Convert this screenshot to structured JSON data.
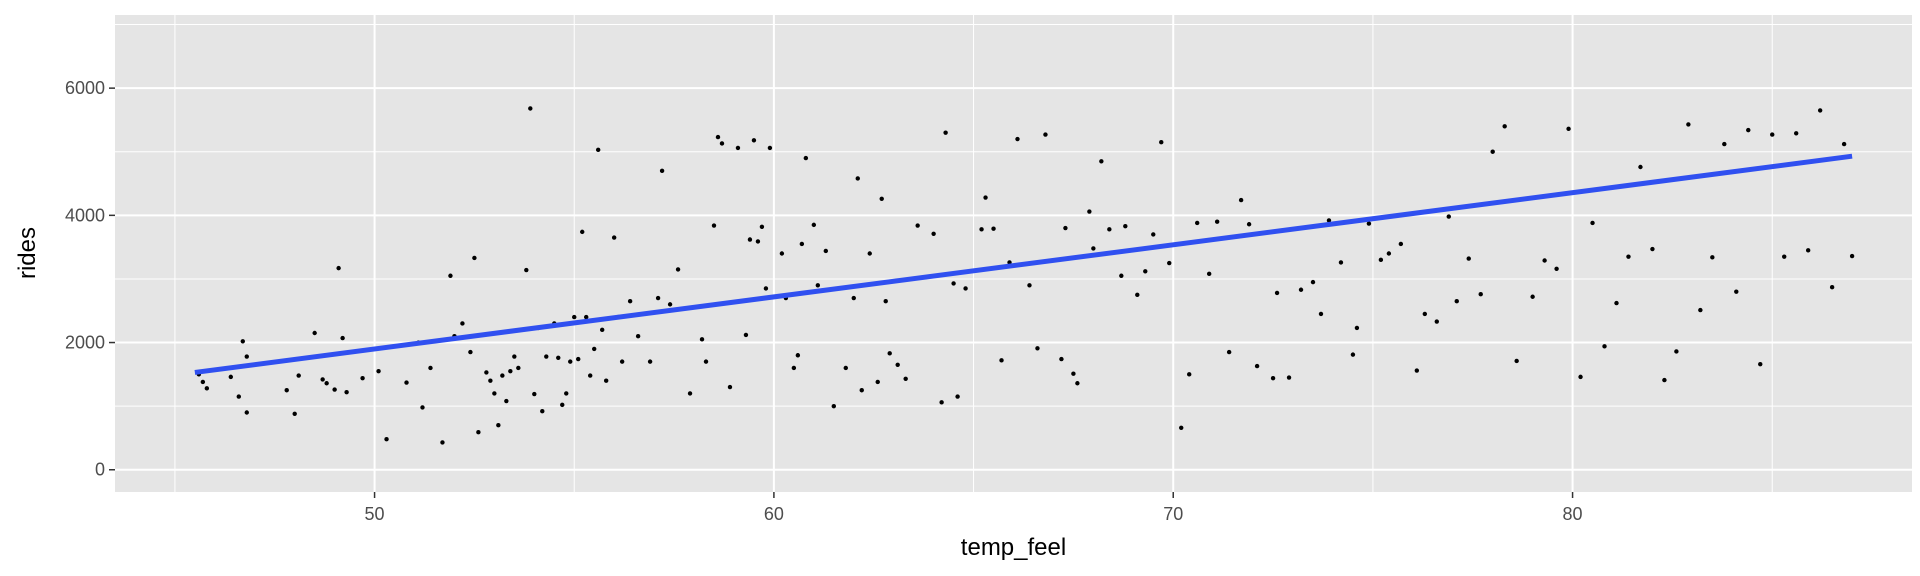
{
  "chart_data": {
    "type": "scatter",
    "xlabel": "temp_feel",
    "ylabel": "rides",
    "xlim": [
      43.5,
      88.5
    ],
    "ylim": [
      -350,
      7150
    ],
    "x_ticks": [
      50,
      60,
      70,
      80
    ],
    "y_ticks": [
      0,
      2000,
      4000,
      6000
    ],
    "x_tick_labels": [
      "50",
      "60",
      "70",
      "80"
    ],
    "y_tick_labels": [
      "0",
      "2000",
      "4000",
      "6000"
    ],
    "grid": true,
    "legend": "none",
    "colors": {
      "panel": "#e5e5e5",
      "grid": "#ffffff",
      "points": "#000000",
      "fit_line": "#3050f0",
      "tick_text": "#4d4d4d"
    },
    "fit_line": {
      "x": [
        45.5,
        87
      ],
      "y": [
        1530,
        4930
      ]
    },
    "series": [
      {
        "points": [
          [
            45.6,
            1500
          ],
          [
            45.7,
            1380
          ],
          [
            45.8,
            1280
          ],
          [
            46.4,
            1460
          ],
          [
            46.6,
            1150
          ],
          [
            46.7,
            2020
          ],
          [
            46.8,
            1780
          ],
          [
            46.8,
            900
          ],
          [
            47.8,
            1250
          ],
          [
            48,
            880
          ],
          [
            48.1,
            1480
          ],
          [
            48.5,
            2150
          ],
          [
            48.7,
            1420
          ],
          [
            48.8,
            1360
          ],
          [
            49,
            1260
          ],
          [
            49.1,
            3170
          ],
          [
            49.2,
            2070
          ],
          [
            49.3,
            1220
          ],
          [
            49.7,
            1440
          ],
          [
            50.1,
            1550
          ],
          [
            50.3,
            480
          ],
          [
            50.8,
            1370
          ],
          [
            51.1,
            2000
          ],
          [
            51.2,
            980
          ],
          [
            51.4,
            1600
          ],
          [
            51.7,
            430
          ],
          [
            51.9,
            3050
          ],
          [
            52,
            2100
          ],
          [
            52.2,
            2300
          ],
          [
            52.4,
            1850
          ],
          [
            52.5,
            3330
          ],
          [
            52.6,
            590
          ],
          [
            52.8,
            1530
          ],
          [
            52.9,
            1400
          ],
          [
            53,
            1200
          ],
          [
            53.1,
            700
          ],
          [
            53.2,
            1480
          ],
          [
            53.3,
            1080
          ],
          [
            53.4,
            1550
          ],
          [
            53.5,
            1780
          ],
          [
            53.6,
            1600
          ],
          [
            53.8,
            3140
          ],
          [
            53.9,
            5680
          ],
          [
            54,
            1190
          ],
          [
            54.1,
            2230
          ],
          [
            54.2,
            920
          ],
          [
            54.3,
            1780
          ],
          [
            54.5,
            2300
          ],
          [
            54.6,
            1760
          ],
          [
            54.7,
            1020
          ],
          [
            54.8,
            1200
          ],
          [
            54.9,
            1700
          ],
          [
            55,
            2400
          ],
          [
            55.1,
            1740
          ],
          [
            55.2,
            3740
          ],
          [
            55.3,
            2400
          ],
          [
            55.4,
            1480
          ],
          [
            55.5,
            1900
          ],
          [
            55.6,
            5030
          ],
          [
            55.7,
            2200
          ],
          [
            55.8,
            1400
          ],
          [
            56,
            3650
          ],
          [
            56.1,
            2400
          ],
          [
            56.2,
            1700
          ],
          [
            56.4,
            2650
          ],
          [
            56.6,
            2100
          ],
          [
            56.9,
            1700
          ],
          [
            57.1,
            2700
          ],
          [
            57.2,
            4700
          ],
          [
            57.4,
            2600
          ],
          [
            57.6,
            3150
          ],
          [
            57.9,
            1200
          ],
          [
            58.2,
            2050
          ],
          [
            58.3,
            1700
          ],
          [
            58.5,
            3840
          ],
          [
            58.6,
            5230
          ],
          [
            58.7,
            5130
          ],
          [
            58.9,
            1300
          ],
          [
            59.1,
            5060
          ],
          [
            59.3,
            2120
          ],
          [
            59.4,
            3620
          ],
          [
            59.5,
            5180
          ],
          [
            59.6,
            3590
          ],
          [
            59.7,
            3820
          ],
          [
            59.8,
            2850
          ],
          [
            59.9,
            5060
          ],
          [
            60.2,
            3400
          ],
          [
            60.3,
            2700
          ],
          [
            60.5,
            1600
          ],
          [
            60.6,
            1800
          ],
          [
            60.7,
            3550
          ],
          [
            60.8,
            4900
          ],
          [
            61,
            3850
          ],
          [
            61.1,
            2900
          ],
          [
            61.3,
            3440
          ],
          [
            61.5,
            1000
          ],
          [
            61.8,
            1600
          ],
          [
            62,
            2700
          ],
          [
            62.1,
            4580
          ],
          [
            62.2,
            1250
          ],
          [
            62.4,
            3400
          ],
          [
            62.6,
            1380
          ],
          [
            62.7,
            4260
          ],
          [
            62.8,
            2650
          ],
          [
            62.9,
            1830
          ],
          [
            63.1,
            1650
          ],
          [
            63.3,
            1430
          ],
          [
            63.6,
            3840
          ],
          [
            64,
            3710
          ],
          [
            64.2,
            1060
          ],
          [
            64.3,
            5300
          ],
          [
            64.5,
            2930
          ],
          [
            64.6,
            1150
          ],
          [
            64.8,
            2850
          ],
          [
            65.2,
            3780
          ],
          [
            65.3,
            4280
          ],
          [
            65.5,
            3790
          ],
          [
            65.7,
            1720
          ],
          [
            65.9,
            3260
          ],
          [
            66.1,
            5200
          ],
          [
            66.4,
            2900
          ],
          [
            66.6,
            1910
          ],
          [
            66.8,
            5270
          ],
          [
            67.2,
            1740
          ],
          [
            67.3,
            3800
          ],
          [
            67.5,
            1510
          ],
          [
            67.6,
            1360
          ],
          [
            67.9,
            4060
          ],
          [
            68,
            3480
          ],
          [
            68.2,
            4850
          ],
          [
            68.4,
            3780
          ],
          [
            68.7,
            3050
          ],
          [
            68.8,
            3830
          ],
          [
            69.1,
            2750
          ],
          [
            69.3,
            3120
          ],
          [
            69.5,
            3700
          ],
          [
            69.7,
            5150
          ],
          [
            69.9,
            3250
          ],
          [
            70.2,
            660
          ],
          [
            70.4,
            1500
          ],
          [
            70.6,
            3880
          ],
          [
            70.9,
            3080
          ],
          [
            71.1,
            3900
          ],
          [
            71.4,
            1850
          ],
          [
            71.7,
            4240
          ],
          [
            71.9,
            3860
          ],
          [
            72.1,
            1630
          ],
          [
            72.5,
            1440
          ],
          [
            72.6,
            2780
          ],
          [
            72.9,
            1450
          ],
          [
            73.2,
            2830
          ],
          [
            73.5,
            2950
          ],
          [
            73.7,
            2450
          ],
          [
            73.9,
            3920
          ],
          [
            74.2,
            3260
          ],
          [
            74.5,
            1810
          ],
          [
            74.6,
            2230
          ],
          [
            74.9,
            3870
          ],
          [
            75.2,
            3300
          ],
          [
            75.4,
            3400
          ],
          [
            75.7,
            3550
          ],
          [
            76.1,
            1560
          ],
          [
            76.3,
            2450
          ],
          [
            76.6,
            2330
          ],
          [
            76.9,
            3980
          ],
          [
            77.1,
            2650
          ],
          [
            77.4,
            3320
          ],
          [
            77.7,
            2760
          ],
          [
            78,
            5000
          ],
          [
            78.3,
            5400
          ],
          [
            78.6,
            1710
          ],
          [
            79,
            2720
          ],
          [
            79.3,
            3290
          ],
          [
            79.6,
            3160
          ],
          [
            79.9,
            5360
          ],
          [
            80.2,
            1460
          ],
          [
            80.5,
            3880
          ],
          [
            80.8,
            1940
          ],
          [
            81.1,
            2620
          ],
          [
            81.4,
            3350
          ],
          [
            81.7,
            4760
          ],
          [
            82,
            3470
          ],
          [
            82.3,
            1410
          ],
          [
            82.6,
            1860
          ],
          [
            82.9,
            5430
          ],
          [
            83.2,
            2510
          ],
          [
            83.5,
            3340
          ],
          [
            83.8,
            5120
          ],
          [
            84.1,
            2800
          ],
          [
            84.4,
            5340
          ],
          [
            84.7,
            1660
          ],
          [
            85,
            5270
          ],
          [
            85.3,
            3350
          ],
          [
            85.6,
            5290
          ],
          [
            85.9,
            3450
          ],
          [
            86.2,
            5650
          ],
          [
            86.5,
            2870
          ],
          [
            86.8,
            5120
          ],
          [
            87,
            3360
          ]
        ]
      }
    ]
  }
}
